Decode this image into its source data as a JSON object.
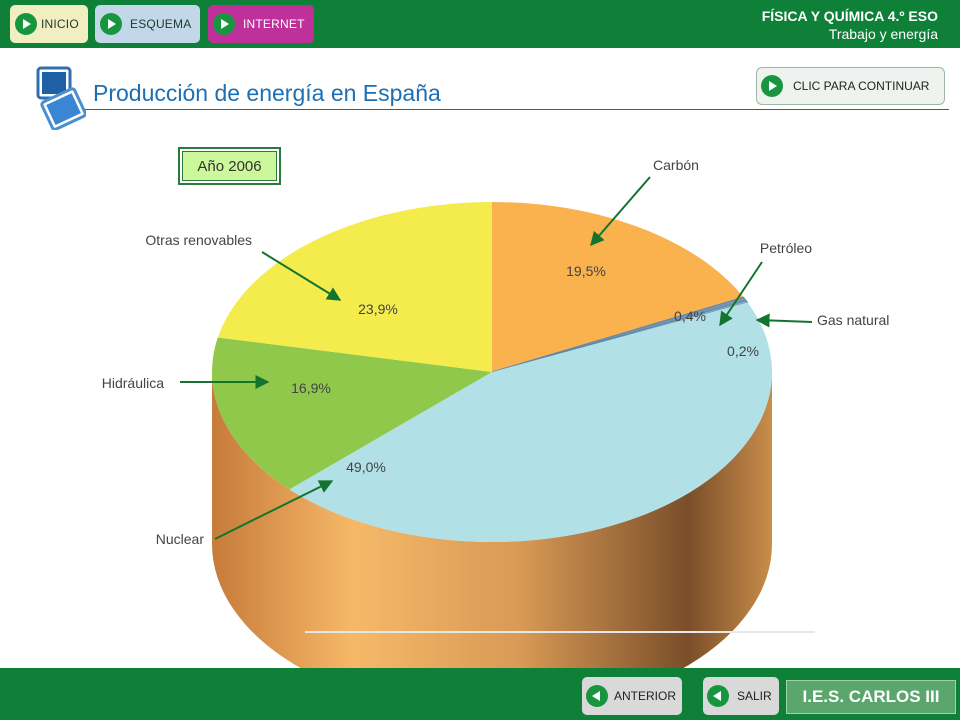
{
  "nav": {
    "inicio": "INICIO",
    "esquema": "ESQUEMA",
    "internet": "INTERNET",
    "inicio_color": "#f1eec2",
    "esquema_color": "#c2d8e9",
    "internet_color": "#c0309a"
  },
  "header": {
    "course": "FÍSICA Y QUÍMICA 4.º ESO",
    "unit": "Trabajo y energía"
  },
  "page": {
    "title": "Producción de energía en España",
    "continue_label": "CLIC PARA CONTINUAR",
    "year_label": "Año 2006"
  },
  "chart_data": {
    "type": "pie",
    "slices": [
      {
        "label": "Carbón",
        "value": 19.5,
        "value_label": "19,5%",
        "color": "#f9b24d"
      },
      {
        "label": "Petróleo",
        "value": 0.4,
        "value_label": "0,4%",
        "color": "#7497b4"
      },
      {
        "label": "Gas natural",
        "value": 0.2,
        "value_label": "0,2%",
        "color": "#9ab0c8"
      },
      {
        "label": "Nuclear",
        "value": 49.0,
        "value_label": "49,0%",
        "color": "#b1e0e6"
      },
      {
        "label": "Hidráulica",
        "value": 16.9,
        "value_label": "16,9%",
        "color": "#8fc84a"
      },
      {
        "label": "Otras renovables",
        "value": 23.9,
        "value_label": "23,9%",
        "color": "#f3ec4c"
      }
    ],
    "side_color": "#c98d4a",
    "arrow_color": "#13742e"
  },
  "footer": {
    "anterior": "ANTERIOR",
    "salir": "SALIR",
    "school": "I.E.S. CARLOS III"
  }
}
